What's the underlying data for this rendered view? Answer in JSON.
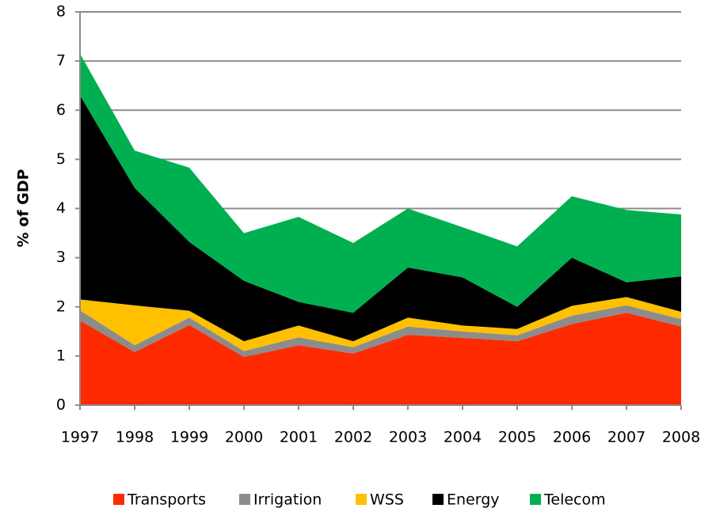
{
  "chart_data": {
    "type": "stacked-area",
    "y_label": "% of GDP",
    "categories": [
      "1997",
      "1998",
      "1999",
      "2000",
      "2001",
      "2002",
      "2003",
      "2004",
      "2005",
      "2006",
      "2007",
      "2008"
    ],
    "series": [
      {
        "name": "Transports",
        "color": "#ff2a00",
        "values": [
          1.72,
          1.08,
          1.63,
          0.98,
          1.22,
          1.05,
          1.43,
          1.37,
          1.3,
          1.65,
          1.88,
          1.6
        ]
      },
      {
        "name": "Irrigation",
        "color": "#8c8c8c",
        "values": [
          0.21,
          0.14,
          0.15,
          0.12,
          0.16,
          0.13,
          0.17,
          0.13,
          0.12,
          0.17,
          0.15,
          0.15
        ]
      },
      {
        "name": "WSS",
        "color": "#ffc000",
        "values": [
          0.22,
          0.81,
          0.14,
          0.2,
          0.24,
          0.12,
          0.18,
          0.12,
          0.13,
          0.2,
          0.17,
          0.15
        ]
      },
      {
        "name": "Energy",
        "color": "#000000",
        "values": [
          4.15,
          2.39,
          1.4,
          1.23,
          0.48,
          0.58,
          1.02,
          0.98,
          0.45,
          0.98,
          0.3,
          0.72
        ]
      },
      {
        "name": "Telecom",
        "color": "#00b050",
        "values": [
          0.85,
          0.76,
          1.51,
          0.97,
          1.73,
          1.42,
          1.2,
          1.02,
          1.23,
          1.25,
          1.47,
          1.26
        ]
      }
    ],
    "ylim": [
      0,
      8
    ],
    "yticks": [
      0,
      1,
      2,
      3,
      4,
      5,
      6,
      7,
      8
    ],
    "grid": true,
    "legend": "bottom"
  }
}
